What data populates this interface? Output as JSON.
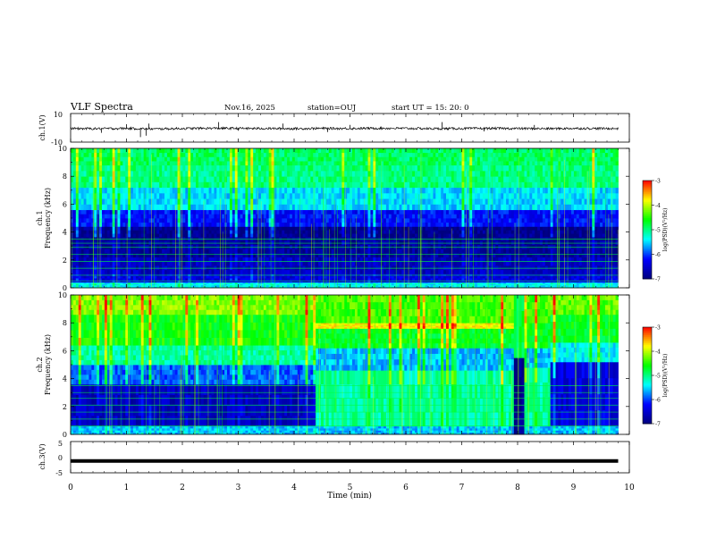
{
  "header": {
    "title": "VLF Spectra",
    "date": "Nov.16, 2025",
    "station": "station=OUJ",
    "start": "start  UT =   15: 20: 0"
  },
  "chart_data": [
    {
      "type": "line",
      "panel": "ch1-waveform",
      "ylabel": "ch.1(V)",
      "ylim": [
        -10,
        10
      ],
      "yticks": [
        "10",
        "-10"
      ],
      "x": [
        0,
        0.5,
        1,
        1.5,
        2,
        2.5,
        3,
        3.5,
        4,
        4.5,
        5,
        5.5,
        6,
        6.5,
        7,
        7.5,
        8,
        8.5,
        9,
        9.5,
        9.8
      ],
      "values": [
        -0.5,
        -0.6,
        -0.4,
        -0.8,
        -0.5,
        -0.3,
        -0.4,
        -0.5,
        -0.6,
        -0.4,
        -0.5,
        -0.3,
        -0.4,
        -0.6,
        -0.5,
        -0.4,
        -0.5,
        -0.6,
        -0.4,
        -0.5,
        -0.5
      ],
      "spikes": [
        {
          "x": 0.55,
          "y": -3.5
        },
        {
          "x": 1.0,
          "y": 2.5
        },
        {
          "x": 1.25,
          "y": -6.5
        },
        {
          "x": 1.35,
          "y": -5.5
        },
        {
          "x": 1.4,
          "y": 3.0
        },
        {
          "x": 2.65,
          "y": 4.0
        },
        {
          "x": 3.0,
          "y": -2.0
        },
        {
          "x": 3.8,
          "y": 3.0
        },
        {
          "x": 4.6,
          "y": -3.0
        },
        {
          "x": 5.0,
          "y": 2.0
        },
        {
          "x": 6.65,
          "y": 4.0
        },
        {
          "x": 7.4,
          "y": -2.5
        },
        {
          "x": 8.3,
          "y": 2.0
        }
      ]
    },
    {
      "type": "heatmap",
      "panel": "ch1-spectrogram",
      "ylabel": "ch.1\nFrequency (kHz)",
      "ylim": [
        0,
        10
      ],
      "yticks": [
        "0",
        "2",
        "4",
        "6",
        "8",
        "10"
      ],
      "xlim": [
        0,
        9.8
      ],
      "colorbar": {
        "label": "log(PSD)(V²/Hz)",
        "ticks": [
          "-3",
          "-4",
          "-5",
          "-6",
          "-7"
        ],
        "range": [
          -7,
          -3
        ]
      },
      "bands": [
        {
          "f": [
            0.0,
            0.4
          ],
          "level": -5.4
        },
        {
          "f": [
            0.4,
            1.0
          ],
          "level": -6.4
        },
        {
          "f": [
            1.0,
            2.2
          ],
          "level": -6.6
        },
        {
          "f": [
            2.2,
            3.4
          ],
          "level": -6.8
        },
        {
          "f": [
            3.4,
            4.4
          ],
          "level": -6.9
        },
        {
          "f": [
            4.4,
            5.6
          ],
          "level": -6.2
        },
        {
          "f": [
            5.6,
            7.2
          ],
          "level": -5.5
        },
        {
          "f": [
            7.2,
            8.8
          ],
          "level": -5.0
        },
        {
          "f": [
            8.8,
            10.0
          ],
          "level": -4.9
        }
      ],
      "lines_khz": [
        0.5,
        0.9,
        1.4,
        1.9,
        2.4,
        2.9,
        3.2,
        3.5
      ]
    },
    {
      "type": "heatmap",
      "panel": "ch2-spectrogram",
      "ylabel": "ch.2\nFrequency (kHz)",
      "ylim": [
        0,
        10
      ],
      "yticks": [
        "0",
        "2",
        "4",
        "6",
        "8",
        "10"
      ],
      "xlim": [
        0,
        9.8
      ],
      "colorbar": {
        "label": "log(PSD)(V²/Hz)",
        "ticks": [
          "-3",
          "-4",
          "-5",
          "-6",
          "-7"
        ],
        "range": [
          -7,
          -3
        ]
      },
      "segments": [
        {
          "t": [
            0,
            4.4
          ],
          "bands": [
            {
              "f": [
                0.0,
                0.6
              ],
              "level": -5.6
            },
            {
              "f": [
                0.6,
                3.6
              ],
              "level": -6.6
            },
            {
              "f": [
                3.6,
                5.0
              ],
              "level": -5.9
            },
            {
              "f": [
                5.0,
                6.4
              ],
              "level": -5.1
            },
            {
              "f": [
                6.4,
                8.6
              ],
              "level": -4.6
            },
            {
              "f": [
                8.6,
                10.0
              ],
              "level": -4.2
            }
          ]
        },
        {
          "t": [
            4.4,
            7.95
          ],
          "bands": [
            {
              "f": [
                0.0,
                0.6
              ],
              "level": -5.6
            },
            {
              "f": [
                0.6,
                4.6
              ],
              "level": -5.1
            },
            {
              "f": [
                4.6,
                6.2
              ],
              "level": -5.6
            },
            {
              "f": [
                6.2,
                7.6
              ],
              "level": -4.7
            },
            {
              "f": [
                7.6,
                8.0
              ],
              "level": -3.8
            },
            {
              "f": [
                8.0,
                10.0
              ],
              "level": -4.4
            }
          ]
        },
        {
          "t": [
            7.95,
            8.1
          ],
          "bands": [
            {
              "f": [
                0.0,
                5.5
              ],
              "level": -7.0
            },
            {
              "f": [
                5.5,
                10.0
              ],
              "level": -4.8
            }
          ]
        },
        {
          "t": [
            8.1,
            8.6
          ],
          "bands": [
            {
              "f": [
                0.0,
                0.6
              ],
              "level": -5.6
            },
            {
              "f": [
                0.6,
                4.8
              ],
              "level": -5.1
            },
            {
              "f": [
                4.8,
                6.2
              ],
              "level": -5.6
            },
            {
              "f": [
                6.2,
                8.0
              ],
              "level": -4.7
            },
            {
              "f": [
                8.0,
                10.0
              ],
              "level": -4.4
            }
          ]
        },
        {
          "t": [
            8.6,
            9.8
          ],
          "bands": [
            {
              "f": [
                0.0,
                0.6
              ],
              "level": -5.6
            },
            {
              "f": [
                0.6,
                5.2
              ],
              "level": -6.4
            },
            {
              "f": [
                5.2,
                6.6
              ],
              "level": -5.4
            },
            {
              "f": [
                6.6,
                8.6
              ],
              "level": -4.7
            },
            {
              "f": [
                8.6,
                10.0
              ],
              "level": -4.3
            }
          ]
        }
      ],
      "lines_khz": [
        0.6,
        1.1,
        1.6,
        2.1,
        2.6,
        3.0,
        3.5
      ]
    },
    {
      "type": "line",
      "panel": "ch3-waveform",
      "ylabel": "ch.3(V)",
      "ylim": [
        -5,
        5
      ],
      "yticks": [
        "5",
        "0",
        "-5"
      ],
      "x": [
        0,
        9.8
      ],
      "values": [
        -1.2,
        -1.2
      ]
    }
  ],
  "xaxis": {
    "label": "Time (min)",
    "ticks": [
      "0",
      "1",
      "2",
      "3",
      "4",
      "5",
      "6",
      "7",
      "8",
      "9",
      "10"
    ],
    "xlim": [
      0,
      10
    ]
  },
  "colors": {
    "colormap": [
      "#00007f",
      "#0000ff",
      "#00ffff",
      "#00ff00",
      "#ffff00",
      "#ff0000",
      "#ffffff"
    ]
  }
}
